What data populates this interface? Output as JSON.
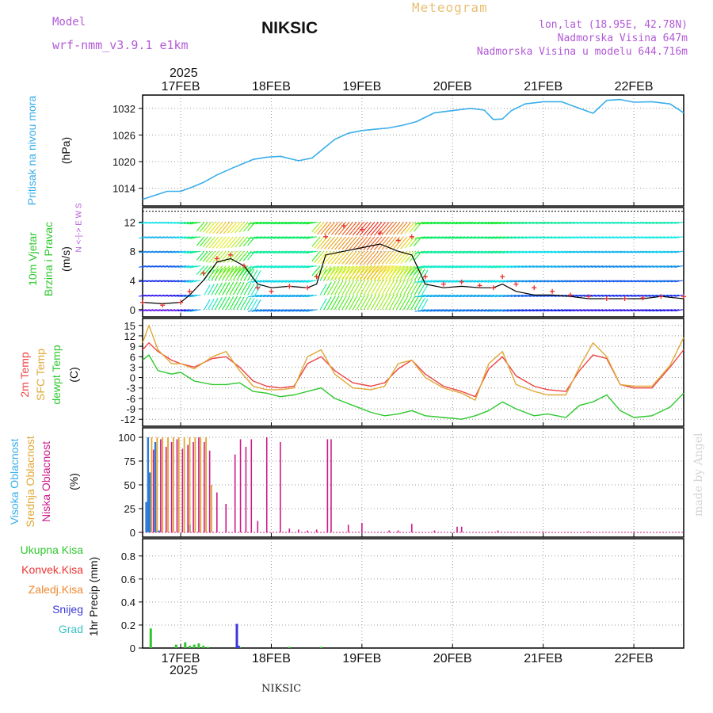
{
  "header": {
    "model_label": "Model",
    "model_name": "wrf-nmm_v3.9.1 e1km",
    "station": "NIKSIC",
    "product": "Meteogram",
    "coords": "lon,lat (18.95E, 42.78N)",
    "elevation": "Nadmorska Visina 647m",
    "model_elevation": "Nadmorska Visina u modelu 644.716m"
  },
  "time_axis": {
    "year": "2025",
    "labels": [
      "17FEB",
      "18FEB",
      "19FEB",
      "20FEB",
      "21FEB",
      "22FEB"
    ]
  },
  "footer": {
    "station": "NIKSIC",
    "credit": "made by Angel"
  },
  "colors": {
    "pressure": "#3aaeea",
    "temp2m": "#ee4444",
    "sfc": "#e0a838",
    "dewpt": "#2ec82e",
    "high_cloud": "#2b7ad8",
    "mid_cloud": "#e2a530",
    "low_cloud": "#cc1b8a",
    "total_precip": "#2ec82e",
    "conv_precip": "#ee3333",
    "frz_rain": "#f08830",
    "snow": "#3a3ad8",
    "hail": "#3ac4c4",
    "wind_speed": "#000000",
    "gust_marker": "#e83030"
  },
  "chart_data": [
    {
      "type": "line",
      "id": "pressure",
      "ylabel": [
        "Pritisak na nivou mora",
        "(hPa)"
      ],
      "ylim": [
        1010,
        1035
      ],
      "yticks": [
        1014,
        1020,
        1026,
        1032
      ],
      "x_days": [
        16.58,
        16.7,
        16.85,
        17.0,
        17.12,
        17.25,
        17.4,
        17.6,
        17.8,
        17.95,
        18.1,
        18.3,
        18.45,
        18.55,
        18.7,
        18.85,
        19.0,
        19.15,
        19.3,
        19.45,
        19.6,
        19.8,
        20.0,
        20.2,
        20.35,
        20.45,
        20.55,
        20.65,
        20.8,
        21.0,
        21.2,
        21.4,
        21.55,
        21.7,
        21.85,
        22.0,
        22.2,
        22.4,
        22.55
      ],
      "series": [
        {
          "values": [
            1011.5,
            1012.3,
            1013.3,
            1013.3,
            1014.2,
            1015.3,
            1017.0,
            1018.8,
            1020.5,
            1021.0,
            1021.2,
            1020.2,
            1020.8,
            1022.5,
            1025.0,
            1026.4,
            1027.0,
            1027.3,
            1027.6,
            1028.2,
            1029.0,
            1031.0,
            1031.5,
            1032.0,
            1031.6,
            1029.5,
            1029.6,
            1031.5,
            1033.0,
            1033.5,
            1033.5,
            1032.0,
            1030.9,
            1033.8,
            1034.0,
            1033.4,
            1033.5,
            1033.0,
            1031.0
          ]
        }
      ],
      "grid": true
    },
    {
      "type": "line",
      "id": "wind",
      "ylabel": [
        "10m Vjetar",
        "Brzina i Pravac",
        "(m/s)"
      ],
      "compass": "N <-|-> E W S",
      "ylim": [
        -1,
        14
      ],
      "yticks": [
        0,
        4,
        8,
        12
      ],
      "x_days": [
        16.58,
        16.8,
        17.0,
        17.1,
        17.25,
        17.4,
        17.55,
        17.7,
        17.85,
        18.0,
        18.2,
        18.4,
        18.5,
        18.6,
        18.8,
        19.0,
        19.2,
        19.4,
        19.55,
        19.7,
        19.9,
        20.1,
        20.3,
        20.45,
        20.55,
        20.7,
        20.9,
        21.1,
        21.3,
        21.5,
        21.7,
        21.9,
        22.1,
        22.3,
        22.55
      ],
      "series": [
        {
          "name": "wind_speed",
          "values": [
            1.0,
            0.8,
            1.0,
            2.0,
            4.0,
            6.5,
            7.0,
            6.0,
            3.5,
            3.0,
            3.2,
            3.0,
            3.5,
            7.5,
            8.0,
            8.5,
            9.0,
            8.0,
            7.5,
            3.5,
            3.0,
            3.2,
            3.0,
            3.0,
            3.5,
            2.5,
            2.0,
            2.0,
            1.8,
            1.5,
            1.5,
            1.5,
            1.5,
            1.8,
            1.5
          ]
        },
        {
          "name": "gust",
          "values": [
            1.0,
            0.6,
            1.0,
            2.5,
            5.0,
            7.0,
            7.5,
            6.0,
            3.0,
            2.5,
            3.2,
            3.0,
            4.5,
            10.0,
            11.5,
            11.0,
            10.5,
            9.5,
            10.0,
            4.5,
            3.5,
            3.8,
            3.3,
            3.0,
            4.5,
            3.5,
            3.0,
            2.5,
            2.0,
            1.8,
            1.5,
            1.5,
            1.6,
            1.8,
            1.8
          ]
        }
      ],
      "grid": true
    },
    {
      "type": "line",
      "id": "temperature",
      "ylabel": [
        "2m Temp",
        "SFC Temp",
        "dewpt Temp",
        "(C)"
      ],
      "ylim": [
        -14,
        17
      ],
      "yticks": [
        -12,
        -9,
        -6,
        -3,
        0,
        3,
        6,
        9,
        12,
        15
      ],
      "x_days": [
        16.58,
        16.65,
        16.75,
        16.9,
        17.0,
        17.15,
        17.35,
        17.5,
        17.65,
        17.8,
        17.95,
        18.1,
        18.25,
        18.4,
        18.55,
        18.7,
        18.9,
        19.1,
        19.25,
        19.4,
        19.55,
        19.7,
        19.9,
        20.1,
        20.25,
        20.4,
        20.55,
        20.7,
        20.9,
        21.05,
        21.25,
        21.4,
        21.55,
        21.7,
        21.85,
        22.0,
        22.2,
        22.4,
        22.55
      ],
      "series": [
        {
          "name": "2m Temp",
          "values": [
            8.0,
            10.0,
            7.5,
            5.0,
            4.0,
            3.0,
            5.5,
            6.0,
            3.0,
            -1.0,
            -2.5,
            -3.0,
            -2.5,
            4.0,
            6.0,
            2.0,
            -1.5,
            -2.5,
            -1.5,
            2.5,
            5.0,
            1.0,
            -2.5,
            -4.0,
            -5.5,
            2.5,
            6.0,
            0.5,
            -2.5,
            -3.5,
            -4.0,
            2.0,
            6.5,
            5.5,
            -2.0,
            -3.0,
            -3.0,
            3.0,
            8.0
          ]
        },
        {
          "name": "SFC Temp",
          "values": [
            10.0,
            15.0,
            8.0,
            4.0,
            4.0,
            2.5,
            6.0,
            7.5,
            2.0,
            -2.5,
            -3.5,
            -3.5,
            -3.0,
            6.0,
            8.0,
            1.0,
            -3.0,
            -3.5,
            -2.5,
            4.0,
            5.0,
            0.0,
            -3.0,
            -4.5,
            -6.5,
            4.0,
            7.5,
            -2.0,
            -4.0,
            -5.0,
            -5.0,
            3.0,
            10.0,
            6.0,
            -2.0,
            -2.5,
            -2.5,
            3.5,
            11.5
          ]
        },
        {
          "name": "dewpt Temp",
          "values": [
            5.0,
            6.5,
            2.0,
            1.0,
            1.5,
            -1.0,
            -2.0,
            -2.0,
            -1.5,
            -4.0,
            -4.5,
            -5.5,
            -5.0,
            -4.0,
            -3.0,
            -6.0,
            -8.0,
            -10.0,
            -11.0,
            -10.5,
            -9.5,
            -11.0,
            -11.5,
            -12.0,
            -11.0,
            -9.5,
            -7.0,
            -9.0,
            -11.0,
            -10.5,
            -11.5,
            -8.0,
            -7.0,
            -5.0,
            -9.5,
            -11.5,
            -11.0,
            -8.5,
            -4.5
          ]
        }
      ],
      "grid": true
    },
    {
      "type": "bar",
      "id": "cloud",
      "ylabel": [
        "Visoka Oblacnost",
        "Srednja Oblacnost",
        "Niska Oblacnost",
        "(%)"
      ],
      "ylim": [
        -5,
        110
      ],
      "yticks": [
        0,
        25,
        50,
        75,
        100
      ],
      "series": [
        {
          "name": "Visoka Oblacnost",
          "x_days": [
            16.62,
            16.64,
            16.66,
            16.72,
            16.76,
            17.1
          ],
          "values": [
            32,
            100,
            63,
            95,
            2,
            8
          ]
        },
        {
          "name": "Srednja Oblacnost",
          "x_days": [
            16.68,
            16.74,
            16.8,
            16.86,
            16.92,
            16.98,
            17.04,
            17.1,
            17.16,
            17.22,
            17.28,
            17.34
          ],
          "values": [
            100,
            100,
            100,
            100,
            100,
            100,
            100,
            100,
            100,
            100,
            100,
            50
          ]
        },
        {
          "name": "Niska Oblacnost",
          "x_days": [
            16.7,
            16.78,
            16.84,
            16.9,
            16.96,
            17.02,
            17.08,
            17.14,
            17.2,
            17.26,
            17.32,
            17.4,
            17.5,
            17.6,
            17.66,
            17.72,
            17.78,
            17.85,
            17.95,
            18.1,
            18.2,
            18.3,
            18.4,
            18.5,
            18.62,
            18.66,
            18.85,
            19.0,
            19.3,
            19.4,
            19.55,
            19.8,
            20.05,
            20.1,
            20.5,
            21.0,
            21.5,
            22.0
          ],
          "values": [
            87,
            98,
            90,
            95,
            98,
            88,
            92,
            95,
            100,
            95,
            86,
            42,
            30,
            82,
            98,
            90,
            98,
            12,
            100,
            95,
            4,
            3,
            2,
            3,
            98,
            98,
            8,
            10,
            2,
            2,
            9,
            2,
            6,
            6,
            2,
            1,
            1,
            1
          ]
        }
      ],
      "grid": true
    },
    {
      "type": "bar",
      "id": "precip",
      "ylabel": [
        "1hr Precip (mm)"
      ],
      "legend": [
        "Ukupna Kisa",
        "Konvek.Kisa",
        "Zaledj.Kisa",
        "Snijeg",
        "Grad"
      ],
      "ylim": [
        0,
        0.95
      ],
      "yticks": [
        0,
        0.2,
        0.4,
        0.6,
        0.8
      ],
      "series": [
        {
          "name": "Ukupna Kisa",
          "x_days": [
            16.67,
            16.95,
            17.05,
            17.1,
            17.15,
            17.2,
            17.25,
            17.3,
            17.65,
            18.2,
            18.55
          ],
          "values": [
            0.17,
            0.03,
            0.05,
            0.02,
            0.03,
            0.04,
            0.02,
            0.01,
            0.01,
            0.01,
            0.01
          ]
        },
        {
          "name": "Snijeg",
          "x_days": [
            17.62,
            17.64
          ],
          "values": [
            0.21,
            0.02
          ]
        }
      ],
      "grid": true
    }
  ]
}
